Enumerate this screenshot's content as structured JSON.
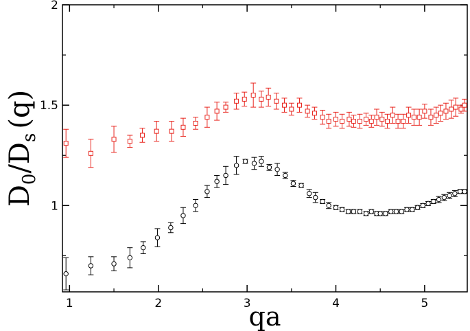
{
  "chart_data": {
    "type": "scatter",
    "title": "",
    "xlabel": "qa",
    "ylabel_main": "D",
    "ylabel_sub0": "0",
    "ylabel_slash": "/D",
    "ylabel_subs": "s",
    "ylabel_tail": "(q)",
    "xlim": [
      0.92,
      5.48
    ],
    "ylim": [
      0.57,
      2.0
    ],
    "xticks": [
      1,
      2,
      3,
      4,
      5
    ],
    "xtick_labels": [
      "1",
      "2",
      "3",
      "4",
      "5"
    ],
    "yticks": [
      1,
      1.5,
      2
    ],
    "ytick_labels": [
      "1",
      "1.5",
      "2"
    ],
    "grid": false,
    "series": [
      {
        "name": "red squares",
        "marker": "square",
        "color": "#e8231c",
        "x": [
          0.96,
          1.24,
          1.5,
          1.68,
          1.82,
          1.98,
          2.15,
          2.28,
          2.42,
          2.55,
          2.66,
          2.76,
          2.88,
          2.97,
          3.07,
          3.16,
          3.24,
          3.33,
          3.42,
          3.5,
          3.59,
          3.68,
          3.76,
          3.85,
          3.92,
          4.0,
          4.07,
          4.15,
          4.2,
          4.27,
          4.34,
          4.4,
          4.46,
          4.52,
          4.58,
          4.64,
          4.7,
          4.76,
          4.82,
          4.88,
          4.94,
          5.0,
          5.07,
          5.13,
          5.18,
          5.24,
          5.3,
          5.35,
          5.41,
          5.45
        ],
        "y": [
          1.31,
          1.26,
          1.33,
          1.32,
          1.35,
          1.37,
          1.37,
          1.39,
          1.41,
          1.44,
          1.47,
          1.49,
          1.52,
          1.53,
          1.55,
          1.53,
          1.54,
          1.52,
          1.5,
          1.48,
          1.5,
          1.47,
          1.46,
          1.44,
          1.42,
          1.43,
          1.42,
          1.43,
          1.42,
          1.42,
          1.43,
          1.42,
          1.44,
          1.43,
          1.42,
          1.45,
          1.42,
          1.42,
          1.45,
          1.44,
          1.44,
          1.47,
          1.44,
          1.45,
          1.46,
          1.47,
          1.48,
          1.49,
          1.48,
          1.5
        ],
        "err": [
          0.07,
          0.07,
          0.065,
          0.03,
          0.035,
          0.05,
          0.05,
          0.045,
          0.03,
          0.05,
          0.045,
          0.025,
          0.04,
          0.035,
          0.06,
          0.04,
          0.045,
          0.04,
          0.035,
          0.03,
          0.035,
          0.03,
          0.03,
          0.035,
          0.035,
          0.035,
          0.035,
          0.035,
          0.03,
          0.035,
          0.03,
          0.03,
          0.04,
          0.035,
          0.035,
          0.04,
          0.035,
          0.035,
          0.04,
          0.04,
          0.04,
          0.035,
          0.04,
          0.04,
          0.04,
          0.04,
          0.045,
          0.045,
          0.02,
          0.03
        ]
      },
      {
        "name": "black circles",
        "marker": "circle",
        "color": "#000000",
        "x": [
          0.96,
          1.24,
          1.5,
          1.68,
          1.83,
          1.99,
          2.14,
          2.28,
          2.42,
          2.55,
          2.66,
          2.76,
          2.88,
          2.98,
          3.08,
          3.16,
          3.25,
          3.34,
          3.43,
          3.52,
          3.61,
          3.7,
          3.77,
          3.85,
          3.92,
          4.0,
          4.07,
          4.14,
          4.2,
          4.27,
          4.34,
          4.4,
          4.46,
          4.5,
          4.56,
          4.62,
          4.68,
          4.74,
          4.8,
          4.86,
          4.92,
          4.98,
          5.04,
          5.1,
          5.16,
          5.22,
          5.28,
          5.34,
          5.4,
          5.45
        ],
        "y": [
          0.66,
          0.7,
          0.71,
          0.74,
          0.79,
          0.84,
          0.89,
          0.95,
          1.0,
          1.07,
          1.12,
          1.15,
          1.2,
          1.22,
          1.21,
          1.22,
          1.19,
          1.18,
          1.15,
          1.11,
          1.1,
          1.06,
          1.04,
          1.02,
          1.0,
          0.99,
          0.98,
          0.97,
          0.97,
          0.97,
          0.96,
          0.97,
          0.96,
          0.96,
          0.96,
          0.97,
          0.97,
          0.97,
          0.98,
          0.98,
          0.99,
          1.0,
          1.01,
          1.02,
          1.03,
          1.04,
          1.05,
          1.06,
          1.07,
          1.07
        ],
        "err": [
          0.08,
          0.045,
          0.035,
          0.05,
          0.03,
          0.045,
          0.025,
          0.04,
          0.03,
          0.03,
          0.03,
          0.045,
          0.045,
          0.01,
          0.03,
          0.025,
          0.015,
          0.03,
          0.015,
          0.015,
          0.01,
          0.02,
          0.025,
          0.01,
          0.015,
          0.01,
          0.01,
          0.01,
          0.01,
          0.01,
          0.01,
          0.01,
          0.01,
          0.01,
          0.01,
          0.01,
          0.01,
          0.01,
          0.01,
          0.01,
          0.01,
          0.01,
          0.01,
          0.01,
          0.015,
          0.015,
          0.015,
          0.015,
          0.01,
          0.01
        ]
      }
    ]
  }
}
